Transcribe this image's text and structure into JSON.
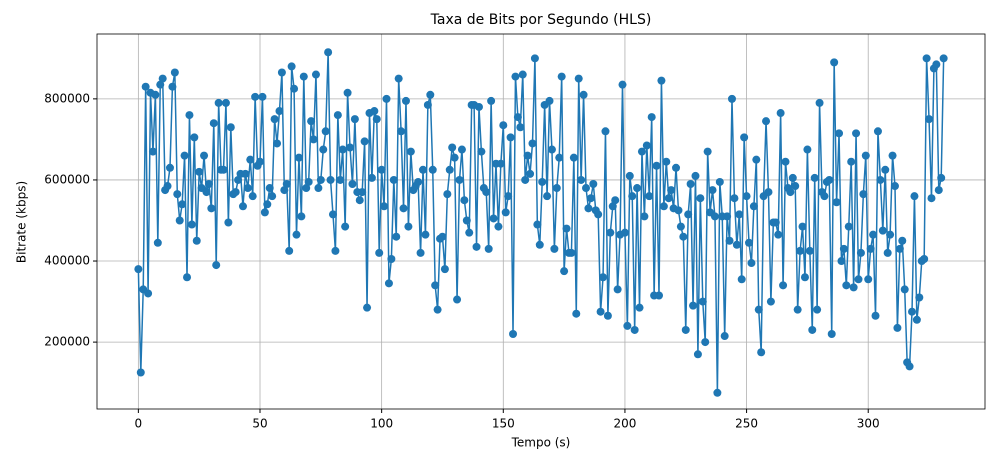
{
  "chart_data": {
    "type": "line",
    "title": "Taxa de Bits por Segundo (HLS)",
    "x_label": "Tempo (s)",
    "y_label": "Bitrate (kbps)",
    "x": [
      0,
      1,
      2,
      3,
      4,
      5,
      6,
      7,
      8,
      9,
      10,
      11,
      12,
      13,
      14,
      15,
      16,
      17,
      18,
      19,
      20,
      21,
      22,
      23,
      24,
      25,
      26,
      27,
      28,
      29,
      30,
      31,
      32,
      33,
      34,
      35,
      36,
      37,
      38,
      39,
      40,
      41,
      42,
      43,
      44,
      45,
      46,
      47,
      48,
      49,
      50,
      51,
      52,
      53,
      54,
      55,
      56,
      57,
      58,
      59,
      60,
      61,
      62,
      63,
      64,
      65,
      66,
      67,
      68,
      69,
      70,
      71,
      72,
      73,
      74,
      75,
      76,
      77,
      78,
      79,
      80,
      81,
      82,
      83,
      84,
      85,
      86,
      87,
      88,
      89,
      90,
      91,
      92,
      93,
      94,
      95,
      96,
      97,
      98,
      99,
      100,
      101,
      102,
      103,
      104,
      105,
      106,
      107,
      108,
      109,
      110,
      111,
      112,
      113,
      114,
      115,
      116,
      117,
      118,
      119,
      120,
      121,
      122,
      123,
      124,
      125,
      126,
      127,
      128,
      129,
      130,
      131,
      132,
      133,
      134,
      135,
      136,
      137,
      138,
      139,
      140,
      141,
      142,
      143,
      144,
      145,
      146,
      147,
      148,
      149,
      150,
      151,
      152,
      153,
      154,
      155,
      156,
      157,
      158,
      159,
      160,
      161,
      162,
      163,
      164,
      165,
      166,
      167,
      168,
      169,
      170,
      171,
      172,
      173,
      174,
      175,
      176,
      177,
      178,
      179,
      180,
      181,
      182,
      183,
      184,
      185,
      186,
      187,
      188,
      189,
      190,
      191,
      192,
      193,
      194,
      195,
      196,
      197,
      198,
      199,
      200,
      201,
      202,
      203,
      204,
      205,
      206,
      207,
      208,
      209,
      210,
      211,
      212,
      213,
      214,
      215,
      216,
      217,
      218,
      219,
      220,
      221,
      222,
      223,
      224,
      225,
      226,
      227,
      228,
      229,
      230,
      231,
      232,
      233,
      234,
      235,
      236,
      237,
      238,
      239,
      240,
      241,
      242,
      243,
      244,
      245,
      246,
      247,
      248,
      249,
      250,
      251,
      252,
      253,
      254,
      255,
      256,
      257,
      258,
      259,
      260,
      261,
      262,
      263,
      264,
      265,
      266,
      267,
      268,
      269,
      270,
      271,
      272,
      273,
      274,
      275,
      276,
      277,
      278,
      279,
      280,
      281,
      282,
      283,
      284,
      285,
      286,
      287,
      288,
      289,
      290,
      291,
      292,
      293,
      294,
      295,
      296,
      297,
      298,
      299,
      300,
      301,
      302,
      303,
      304,
      305,
      306,
      307,
      308,
      309,
      310,
      311,
      312,
      313,
      314,
      315,
      316,
      317,
      318,
      319,
      320,
      321,
      322,
      323,
      324,
      325,
      326,
      327,
      328,
      329,
      330,
      331
    ],
    "series": [
      {
        "color": "#1f77b4",
        "values": [
          380000,
          125000,
          330000,
          830000,
          320000,
          815000,
          670000,
          810000,
          445000,
          835000,
          850000,
          575000,
          585000,
          630000,
          830000,
          865000,
          565000,
          500000,
          540000,
          660000,
          360000,
          760000,
          490000,
          705000,
          450000,
          620000,
          580000,
          660000,
          570000,
          590000,
          530000,
          740000,
          390000,
          790000,
          625000,
          625000,
          790000,
          495000,
          730000,
          565000,
          570000,
          600000,
          615000,
          535000,
          615000,
          580000,
          650000,
          560000,
          805000,
          635000,
          645000,
          805000,
          520000,
          540000,
          580000,
          560000,
          750000,
          690000,
          770000,
          865000,
          575000,
          590000,
          425000,
          880000,
          825000,
          465000,
          655000,
          510000,
          855000,
          580000,
          595000,
          745000,
          700000,
          860000,
          580000,
          600000,
          675000,
          720000,
          915000,
          600000,
          515000,
          425000,
          760000,
          600000,
          675000,
          485000,
          815000,
          680000,
          590000,
          750000,
          570000,
          550000,
          570000,
          695000,
          285000,
          765000,
          605000,
          770000,
          750000,
          420000,
          625000,
          535000,
          800000,
          345000,
          405000,
          600000,
          460000,
          850000,
          720000,
          530000,
          795000,
          485000,
          670000,
          575000,
          585000,
          595000,
          420000,
          625000,
          465000,
          785000,
          810000,
          625000,
          340000,
          280000,
          455000,
          460000,
          380000,
          565000,
          625000,
          680000,
          655000,
          305000,
          600000,
          675000,
          550000,
          500000,
          470000,
          785000,
          785000,
          435000,
          780000,
          670000,
          580000,
          570000,
          430000,
          795000,
          505000,
          640000,
          485000,
          640000,
          735000,
          520000,
          560000,
          705000,
          220000,
          855000,
          755000,
          730000,
          860000,
          600000,
          660000,
          615000,
          690000,
          900000,
          490000,
          440000,
          595000,
          785000,
          560000,
          795000,
          675000,
          430000,
          580000,
          655000,
          855000,
          375000,
          480000,
          420000,
          420000,
          655000,
          270000,
          850000,
          600000,
          810000,
          580000,
          530000,
          555000,
          590000,
          525000,
          515000,
          275000,
          360000,
          720000,
          265000,
          470000,
          535000,
          550000,
          330000,
          465000,
          835000,
          470000,
          240000,
          610000,
          560000,
          230000,
          580000,
          285000,
          670000,
          510000,
          685000,
          560000,
          755000,
          315000,
          635000,
          315000,
          845000,
          535000,
          645000,
          555000,
          575000,
          530000,
          630000,
          525000,
          485000,
          460000,
          230000,
          515000,
          590000,
          290000,
          610000,
          170000,
          555000,
          300000,
          200000,
          670000,
          520000,
          575000,
          510000,
          75000,
          595000,
          510000,
          215000,
          510000,
          450000,
          800000,
          555000,
          440000,
          515000,
          355000,
          705000,
          560000,
          445000,
          395000,
          535000,
          650000,
          280000,
          175000,
          560000,
          745000,
          570000,
          300000,
          495000,
          495000,
          465000,
          765000,
          340000,
          645000,
          580000,
          570000,
          605000,
          585000,
          280000,
          425000,
          485000,
          360000,
          675000,
          425000,
          230000,
          605000,
          280000,
          790000,
          570000,
          560000,
          595000,
          600000,
          220000,
          890000,
          545000,
          715000,
          400000,
          430000,
          340000,
          485000,
          645000,
          335000,
          715000,
          355000,
          420000,
          565000,
          660000,
          355000,
          430000,
          465000,
          265000,
          720000,
          600000,
          475000,
          625000,
          420000,
          465000,
          660000,
          585000,
          235000,
          430000,
          450000,
          330000,
          150000,
          140000,
          275000,
          560000,
          255000,
          310000,
          400000,
          405000,
          900000,
          750000,
          555000,
          875000,
          885000,
          575000,
          605000,
          900000
        ]
      }
    ],
    "xlim": [
      -17,
      348
    ],
    "ylim": [
      35000,
      960000
    ],
    "xticks": [
      0,
      50,
      100,
      150,
      200,
      250,
      300
    ],
    "yticks": [
      200000,
      400000,
      600000,
      800000
    ],
    "grid": true
  }
}
